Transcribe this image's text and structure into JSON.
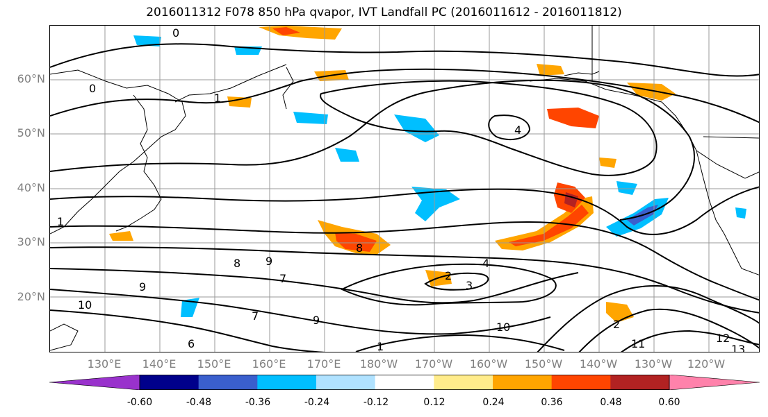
{
  "title": "2016011312 F078 850 hPa qvapor, IVT Landfall PC (2016011612 - 2016011812)",
  "lat_labels": [
    "60°N",
    "50°N",
    "40°N",
    "30°N",
    "20°N"
  ],
  "lon_labels": [
    "130°E",
    "140°E",
    "150°E",
    "160°E",
    "170°E",
    "180°W",
    "170°W",
    "160°W",
    "150°W",
    "140°W",
    "130°W",
    "120°W"
  ],
  "colorbar": {
    "colors": [
      "#9932cc",
      "#00008b",
      "#3a5fcd",
      "#00bfff",
      "#b0e2ff",
      "#ffffff",
      "#ffec8b",
      "#ffa500",
      "#ff4500",
      "#b22222",
      "#ff82ab"
    ],
    "tick_labels": [
      "-0.60",
      "-0.48",
      "-0.36",
      "-0.24",
      "-0.12",
      "0.12",
      "0.24",
      "0.36",
      "0.48",
      "0.60"
    ],
    "extend": "both"
  },
  "contour_labels": [
    "0",
    "1",
    "0",
    "4",
    "1",
    "8",
    "9",
    "7",
    "2",
    "3",
    "4",
    "9",
    "10",
    "8",
    "1",
    "6",
    "2",
    "7",
    "9",
    "10",
    "11",
    "12",
    "13"
  ],
  "colors": {
    "contour": "#000000",
    "grid": "#999999",
    "coast": "#000000"
  }
}
